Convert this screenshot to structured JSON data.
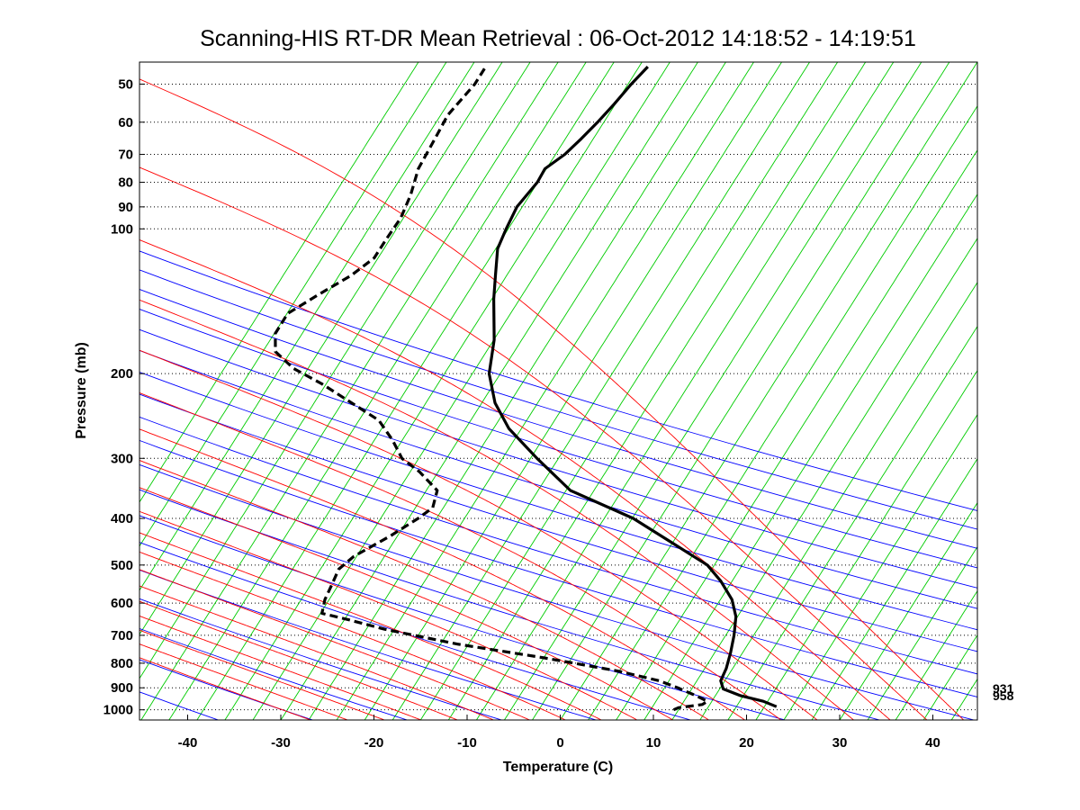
{
  "chart_data": {
    "type": "line",
    "subtype": "skew-t log-p diagram",
    "title": "Scanning-HIS RT-DR Mean Retrieval : 06-Oct-2012 14:18:52 - 14:19:51",
    "xlabel": "Temperature (C)",
    "ylabel": "Pressure (mb)",
    "xlim": [
      -45,
      45
    ],
    "ylim": [
      1050,
      45
    ],
    "x_ticks": [
      "-40",
      "-30",
      "-20",
      "-10",
      "0",
      "10",
      "20",
      "30",
      "40"
    ],
    "y_ticks": [
      {
        "p": 50,
        "label": "50"
      },
      {
        "p": 60,
        "label": "60"
      },
      {
        "p": 70,
        "label": "70"
      },
      {
        "p": 80,
        "label": "80"
      },
      {
        "p": 90,
        "label": "90"
      },
      {
        "p": 100,
        "label": "100"
      },
      {
        "p": 200,
        "label": "200"
      },
      {
        "p": 300,
        "label": "300"
      },
      {
        "p": 400,
        "label": "400"
      },
      {
        "p": 500,
        "label": "500"
      },
      {
        "p": 600,
        "label": "600"
      },
      {
        "p": 700,
        "label": "700"
      },
      {
        "p": 800,
        "label": "800"
      },
      {
        "p": 900,
        "label": "900"
      },
      {
        "p": 1000,
        "label": "1000"
      }
    ],
    "grid": "horizontal dotted at pressure ticks",
    "side_labels": [
      "931",
      "958"
    ],
    "colors": {
      "dry_adiabat": "#0000ff",
      "moist_adiabat": "#ff0000",
      "mixing_ratio": "#00cc00",
      "temperature": "#000000",
      "dewpoint": "#000000"
    },
    "series": [
      {
        "name": "Temperature",
        "style": "solid",
        "points": [
          [
            23,
            985
          ],
          [
            21.5,
            960
          ],
          [
            19,
            935
          ],
          [
            17,
            905
          ],
          [
            16.6,
            870
          ],
          [
            17,
            820
          ],
          [
            17.2,
            760
          ],
          [
            17.3,
            700
          ],
          [
            17.2,
            640
          ],
          [
            16.5,
            590
          ],
          [
            15,
            540
          ],
          [
            13.3,
            500
          ],
          [
            9.2,
            450
          ],
          [
            4.6,
            400
          ],
          [
            -2.6,
            350
          ],
          [
            -6.7,
            300
          ],
          [
            -10.2,
            260
          ],
          [
            -12.1,
            230
          ],
          [
            -13.2,
            200
          ],
          [
            -13.2,
            170
          ],
          [
            -13.9,
            140
          ],
          [
            -14.1,
            125
          ],
          [
            -14.3,
            110
          ],
          [
            -13.7,
            100
          ],
          [
            -12.9,
            90
          ],
          [
            -11.1,
            80
          ],
          [
            -10.5,
            75
          ],
          [
            -8.6,
            70
          ],
          [
            -7.1,
            65
          ],
          [
            -5.6,
            60
          ],
          [
            -4.1,
            55
          ],
          [
            -2.6,
            50
          ],
          [
            -1.1,
            46
          ]
        ]
      },
      {
        "name": "Dewpoint",
        "style": "dashed",
        "points": [
          [
            12,
            1000
          ],
          [
            12.5,
            990
          ],
          [
            15,
            975
          ],
          [
            15.5,
            960
          ],
          [
            14.2,
            935
          ],
          [
            12.1,
            900
          ],
          [
            10,
            870
          ],
          [
            5.3,
            830
          ],
          [
            -2.7,
            780
          ],
          [
            -12.3,
            730
          ],
          [
            -20.3,
            680
          ],
          [
            -24.3,
            650
          ],
          [
            -27.3,
            630
          ],
          [
            -27.2,
            590
          ],
          [
            -26.7,
            550
          ],
          [
            -26.2,
            510
          ],
          [
            -24.8,
            480
          ],
          [
            -21.2,
            435
          ],
          [
            -18.5,
            400
          ],
          [
            -17.1,
            380
          ],
          [
            -16.9,
            350
          ],
          [
            -19.1,
            320
          ],
          [
            -21.2,
            300
          ],
          [
            -22.5,
            275
          ],
          [
            -24.3,
            250
          ],
          [
            -27.5,
            230
          ],
          [
            -31,
            210
          ],
          [
            -34.3,
            195
          ],
          [
            -36.5,
            180
          ],
          [
            -36.8,
            165
          ],
          [
            -35.8,
            150
          ],
          [
            -32.8,
            137
          ],
          [
            -29.6,
            125
          ],
          [
            -27.4,
            115
          ],
          [
            -26.4,
            105
          ],
          [
            -25.2,
            95
          ],
          [
            -24.5,
            85
          ],
          [
            -24.1,
            75
          ],
          [
            -22.8,
            65
          ],
          [
            -21.8,
            58
          ],
          [
            -19.4,
            50
          ],
          [
            -18.5,
            46
          ]
        ]
      }
    ]
  }
}
